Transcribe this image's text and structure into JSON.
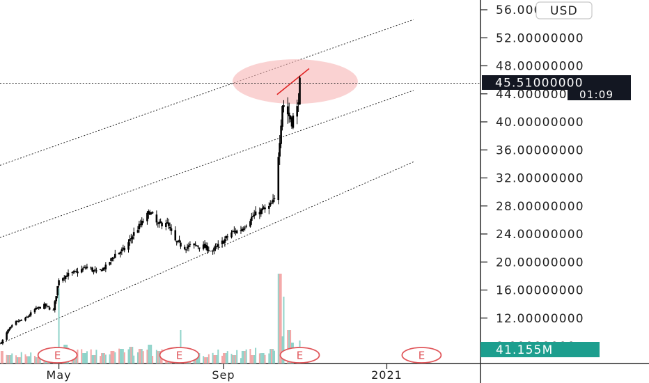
{
  "currency_button": "USD",
  "chart_data": {
    "type": "candlestick",
    "title": "",
    "ylabel": "",
    "ylim": [
      8,
      58
    ],
    "y_ticks": [
      {
        "value": 56,
        "label": "56.00000000"
      },
      {
        "value": 52,
        "label": "52.00000000"
      },
      {
        "value": 48,
        "label": "48.00000000"
      },
      {
        "value": 44,
        "label": "44.00000000"
      },
      {
        "value": 40,
        "label": "40.00000000"
      },
      {
        "value": 36,
        "label": "36.00000000"
      },
      {
        "value": 32,
        "label": "32.00000000"
      },
      {
        "value": 28,
        "label": "28.00000000"
      },
      {
        "value": 24,
        "label": "24.00000000"
      },
      {
        "value": 20,
        "label": "20.00000000"
      },
      {
        "value": 16,
        "label": "16.00000000"
      },
      {
        "value": 12,
        "label": "12.00000000"
      },
      {
        "value": 8,
        "label": "8.00000000"
      }
    ],
    "x_ticks": [
      {
        "date": "2020-05-01",
        "label": "May"
      },
      {
        "date": "2020-09-01",
        "label": "Sep"
      },
      {
        "date": "2021-01-01",
        "label": "2021"
      }
    ],
    "xlim": [
      "2020-03-18",
      "2021-03-12"
    ],
    "last_price": {
      "value": 45.51,
      "label": "45.51000000",
      "countdown": "01:09"
    },
    "volume_label": "41.155M",
    "earnings_markers": [
      {
        "date": "2020-04-30",
        "label": "E"
      },
      {
        "date": "2020-07-30",
        "label": "E"
      },
      {
        "date": "2020-10-28",
        "label": "E"
      },
      {
        "date": "2021-01-27",
        "label": "E"
      }
    ],
    "channel_lines": [
      {
        "name": "upper",
        "start": {
          "date": "2020-03-18",
          "value": 33.8
        },
        "end": {
          "date": "2021-01-21",
          "value": 54.6
        }
      },
      {
        "name": "middle",
        "start": {
          "date": "2020-03-18",
          "value": 23.5
        },
        "end": {
          "date": "2021-01-21",
          "value": 44.5
        }
      },
      {
        "name": "lower",
        "start": {
          "date": "2020-03-18",
          "value": 8.3
        },
        "end": {
          "date": "2021-01-21",
          "value": 34.3
        }
      }
    ],
    "highlight_segment": {
      "start": {
        "date": "2020-10-11",
        "value": 43.9
      },
      "end": {
        "date": "2020-11-04",
        "value": 47.6
      }
    },
    "price_path": [
      [
        "2020-03-19",
        8.5
      ],
      [
        "2020-03-24",
        10.2
      ],
      [
        "2020-03-30",
        11.4
      ],
      [
        "2020-04-06",
        11.9
      ],
      [
        "2020-04-13",
        13.2
      ],
      [
        "2020-04-20",
        13.8
      ],
      [
        "2020-04-27",
        13.1
      ],
      [
        "2020-05-01",
        17.6
      ],
      [
        "2020-05-08",
        18.2
      ],
      [
        "2020-05-15",
        18.6
      ],
      [
        "2020-05-22",
        19.3
      ],
      [
        "2020-05-29",
        18.5
      ],
      [
        "2020-06-05",
        19.3
      ],
      [
        "2020-06-12",
        21.1
      ],
      [
        "2020-06-19",
        21.8
      ],
      [
        "2020-06-26",
        24.1
      ],
      [
        "2020-07-03",
        25.8
      ],
      [
        "2020-07-08",
        27.2
      ],
      [
        "2020-07-14",
        25.2
      ],
      [
        "2020-07-20",
        25.8
      ],
      [
        "2020-07-27",
        22.9
      ],
      [
        "2020-08-03",
        22.1
      ],
      [
        "2020-08-10",
        22.4
      ],
      [
        "2020-08-17",
        22.2
      ],
      [
        "2020-08-24",
        21.6
      ],
      [
        "2020-08-31",
        22.8
      ],
      [
        "2020-09-07",
        24.2
      ],
      [
        "2020-09-14",
        24.6
      ],
      [
        "2020-09-21",
        26.2
      ],
      [
        "2020-09-28",
        27.2
      ],
      [
        "2020-10-05",
        27.8
      ],
      [
        "2020-10-09",
        28.8
      ],
      [
        "2020-10-13",
        37.8
      ],
      [
        "2020-10-15",
        42.6
      ],
      [
        "2020-10-19",
        41.2
      ],
      [
        "2020-10-22",
        40.2
      ],
      [
        "2020-10-26",
        41.8
      ],
      [
        "2020-10-28",
        45.5
      ]
    ],
    "volume": [
      [
        "2020-03-19",
        0.6
      ],
      [
        "2020-03-25",
        0.4
      ],
      [
        "2020-04-01",
        0.3
      ],
      [
        "2020-04-08",
        0.35
      ],
      [
        "2020-04-15",
        0.3
      ],
      [
        "2020-04-22",
        0.4
      ],
      [
        "2020-04-29",
        0.8
      ],
      [
        "2020-05-01",
        3.6
      ],
      [
        "2020-05-06",
        0.9
      ],
      [
        "2020-05-13",
        0.5
      ],
      [
        "2020-05-20",
        0.5
      ],
      [
        "2020-05-27",
        0.4
      ],
      [
        "2020-06-03",
        0.5
      ],
      [
        "2020-06-10",
        0.6
      ],
      [
        "2020-06-17",
        0.7
      ],
      [
        "2020-06-24",
        0.8
      ],
      [
        "2020-07-01",
        0.7
      ],
      [
        "2020-07-08",
        0.9
      ],
      [
        "2020-07-15",
        0.6
      ],
      [
        "2020-07-22",
        0.5
      ],
      [
        "2020-07-29",
        0.8
      ],
      [
        "2020-07-31",
        1.6
      ],
      [
        "2020-08-05",
        0.5
      ],
      [
        "2020-08-12",
        0.4
      ],
      [
        "2020-08-19",
        0.3
      ],
      [
        "2020-08-26",
        0.4
      ],
      [
        "2020-09-02",
        0.5
      ],
      [
        "2020-09-09",
        0.4
      ],
      [
        "2020-09-16",
        0.6
      ],
      [
        "2020-09-23",
        0.4
      ],
      [
        "2020-09-30",
        0.5
      ],
      [
        "2020-10-07",
        0.7
      ],
      [
        "2020-10-13",
        4.3
      ],
      [
        "2020-10-15",
        1.3
      ],
      [
        "2020-10-16",
        3.2
      ],
      [
        "2020-10-20",
        1.6
      ],
      [
        "2020-10-22",
        1.0
      ],
      [
        "2020-10-26",
        0.8
      ],
      [
        "2020-10-28",
        1.1
      ]
    ]
  }
}
